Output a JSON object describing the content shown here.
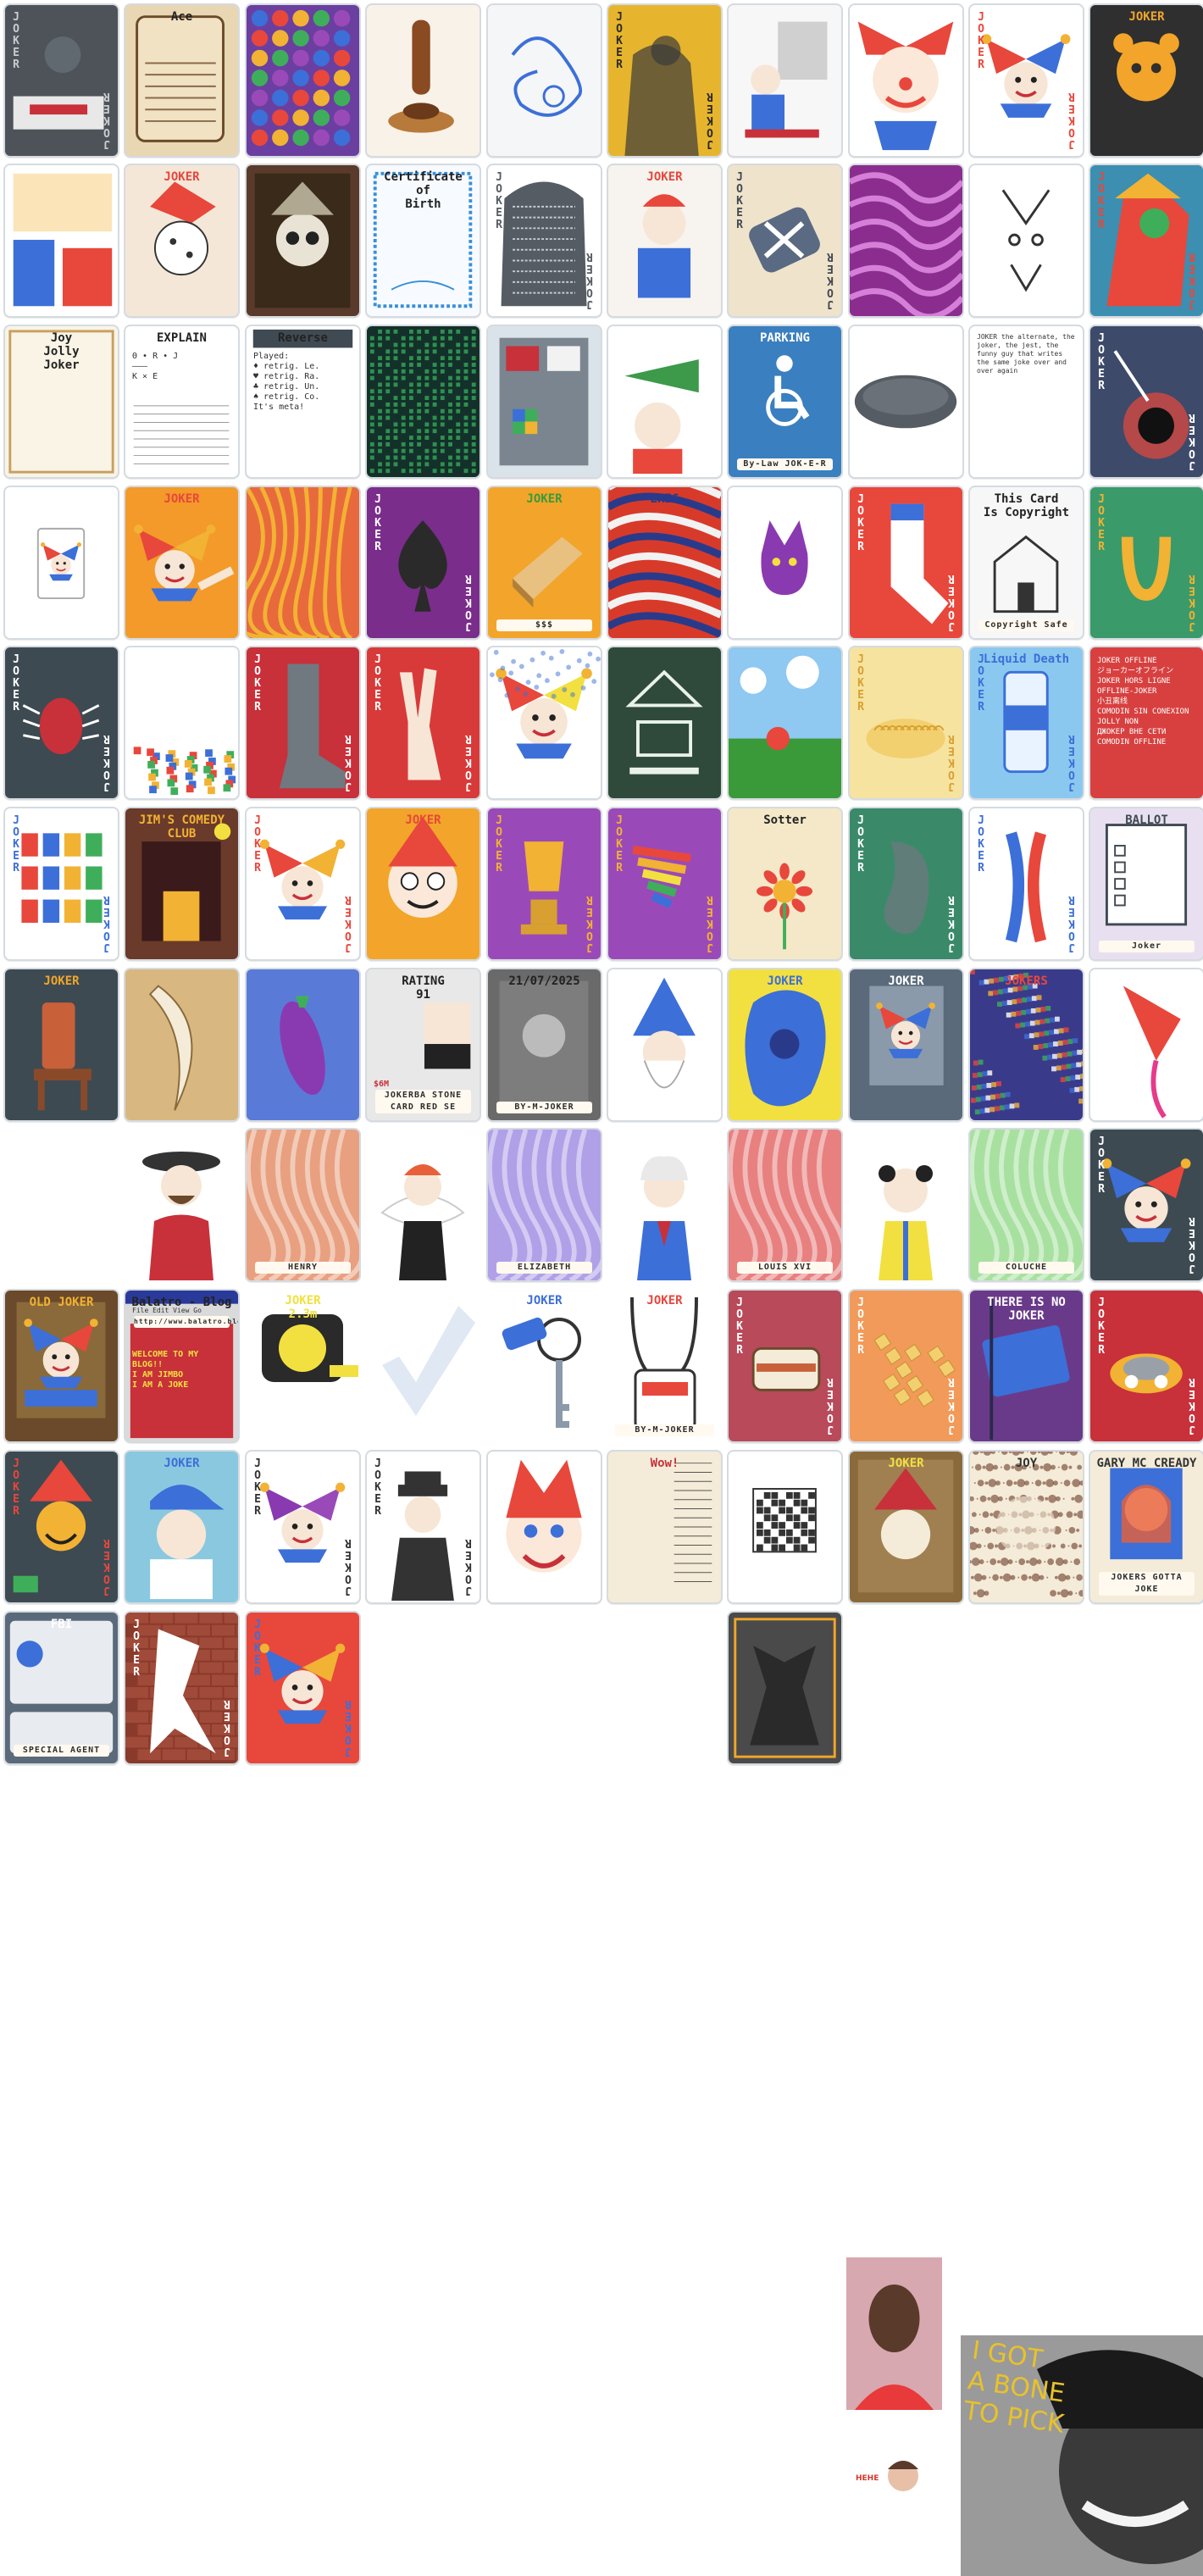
{
  "palette": {
    "border": "#d5dbe0",
    "joker_red": "#e8473c",
    "joker_blue": "#3c6fd8",
    "gold": "#f2b233",
    "dark": "#404a52"
  },
  "cards": [
    {
      "id": "c1",
      "bg": "#4d5359",
      "acc": "#c7ccd1",
      "corner": "JOKER",
      "art": "ashtray"
    },
    {
      "id": "c2",
      "bg": "#e8d7b2",
      "acc": "#3a2a1a",
      "label": "Ace",
      "art": "scroll"
    },
    {
      "id": "c3",
      "bg": "#6a3fa0",
      "acc": "#f0b532",
      "art": "gems"
    },
    {
      "id": "c4",
      "bg": "#f9f2e9",
      "acc": "#8a4a22",
      "art": "stamp"
    },
    {
      "id": "c5",
      "bg": "#f4f6f8",
      "acc": "#3c6fd8",
      "art": "scribble"
    },
    {
      "id": "c6",
      "bg": "#e6b52d",
      "acc": "#2a2a2a",
      "corner": "JOKER",
      "art": "shadow"
    },
    {
      "id": "c7",
      "bg": "#f7f7f7",
      "acc": "#c0392b",
      "art": "painter"
    },
    {
      "id": "c8",
      "bg": "#ffffff",
      "acc": "#e8473c",
      "art": "clown"
    },
    {
      "id": "c9",
      "bg": "#ffffff",
      "acc": "#e8473c",
      "corner": "JOKER",
      "art": "jester"
    },
    {
      "id": "c10",
      "bg": "#2f2f2f",
      "acc": "#f2a52a",
      "label": "JOKER",
      "art": "bear"
    },
    {
      "id": "c11",
      "bg": "#ffffff",
      "acc": "#e8473c",
      "art": "puzzle"
    },
    {
      "id": "c12",
      "bg": "#f4e7d8",
      "acc": "#e8473c",
      "label": "JOKER",
      "art": "dice"
    },
    {
      "id": "c13",
      "bg": "#5a3a2a",
      "acc": "#e9e3d5",
      "art": "skull"
    },
    {
      "id": "c14",
      "bg": "#f7fbff",
      "acc": "#3a8fd8",
      "label": "Certificate\nof\nBirth",
      "art": "certificate"
    },
    {
      "id": "c15",
      "bg": "#ffffff",
      "acc": "#555c63",
      "corner": "JOKER",
      "art": "stone"
    },
    {
      "id": "c16",
      "bg": "#f7f3ee",
      "acc": "#e8473c",
      "label": "JOKER",
      "art": "figure"
    },
    {
      "id": "c17",
      "bg": "#efe3cc",
      "acc": "#404a52",
      "corner": "JOKER",
      "art": "bandage"
    },
    {
      "id": "c18",
      "bg": "#8a2d8f",
      "acc": "#d57fd8",
      "art": "waves"
    },
    {
      "id": "c19",
      "bg": "#ffffff",
      "acc": "#333333",
      "art": "face"
    },
    {
      "id": "c20",
      "bg": "#3c8fb0",
      "acc": "#e8473c",
      "corner": "JOKER",
      "art": "bird"
    },
    {
      "id": "c21",
      "bg": "#faf4e6",
      "acc": "#333333",
      "label": "Joy\nJolly\nJoker",
      "art": "handwriting"
    },
    {
      "id": "c22",
      "bg": "#ffffff",
      "acc": "#333333",
      "label": "EXPLAIN",
      "body": "Θ • R • J\n———\nK × E",
      "art": "lines"
    },
    {
      "id": "c23",
      "bg": "#ffffff",
      "acc": "#333333",
      "label": "Reverse",
      "body": "Played:\n♦ retrig. Le.\n♥ retrig. Ra.\n♣ retrig. Un.\n♠ retrig. Co.\nIt's meta!",
      "art": "reverse"
    },
    {
      "id": "c24",
      "bg": "#14302a",
      "acc": "#3fd06b",
      "art": "matrix"
    },
    {
      "id": "c25",
      "bg": "#dbe3ea",
      "acc": "#404a52",
      "art": "device"
    },
    {
      "id": "c26",
      "bg": "#ffffff",
      "acc": "#3c9a4a",
      "art": "trumpet"
    },
    {
      "id": "c27",
      "bg": "#3a7fc0",
      "acc": "#ffffff",
      "label": "PARKING",
      "sub": "By-Law JOK-E-R",
      "art": "parking"
    },
    {
      "id": "c28",
      "bg": "#ffffff",
      "acc": "#555c63",
      "art": "button"
    },
    {
      "id": "c29",
      "bg": "#ffffff",
      "acc": "#333333",
      "body": "JOKER the alternate, the joker, the jest, the funny guy that writes the same joke over and over again",
      "art": "text"
    },
    {
      "id": "c30",
      "bg": "#3d4a6a",
      "acc": "#ffffff",
      "corner": "JOKER",
      "art": "blackhole"
    },
    {
      "id": "c31",
      "bg": "#ffffff",
      "acc": "#e8473c",
      "art": "mini"
    },
    {
      "id": "c32",
      "bg": "#f39a2a",
      "acc": "#e8473c",
      "label": "JOKER",
      "art": "pointer"
    },
    {
      "id": "c33",
      "bg": "#e86a3c",
      "acc": "#f2b233",
      "art": "noodles"
    },
    {
      "id": "c34",
      "bg": "#7a2d8a",
      "acc": "#ffffff",
      "corner": "JOKER",
      "art": "spade"
    },
    {
      "id": "c35",
      "bg": "#f2a52a",
      "acc": "#3a9a3a",
      "label": "JOKER",
      "sub": "$$$",
      "art": "bread"
    },
    {
      "id": "c36",
      "bg": "#d83a2a",
      "acc": "#2a3a8a",
      "label": "ERIC",
      "art": "swirl"
    },
    {
      "id": "c37",
      "bg": "#ffffff",
      "acc": "#8a3ab0",
      "art": "cat"
    },
    {
      "id": "c38",
      "bg": "#e8473c",
      "acc": "#ffffff",
      "corner": "JOKER",
      "art": "sock"
    },
    {
      "id": "c39",
      "bg": "#f7f7f7",
      "acc": "#333333",
      "label": "This Card\nIs Copyright",
      "sub": "Copyright Safe",
      "art": "house"
    },
    {
      "id": "c40",
      "bg": "#3a9a6a",
      "acc": "#f2b233",
      "corner": "JOKER",
      "art": "horseshoe"
    },
    {
      "id": "c41",
      "bg": "#3d4a52",
      "acc": "#ffffff",
      "corner": "JOKER",
      "art": "bug"
    },
    {
      "id": "c42",
      "bg": "#ffffff",
      "acc": "#e8473c",
      "art": "rubble"
    },
    {
      "id": "c43",
      "bg": "#c8303a",
      "acc": "#ffffff",
      "corner": "JOKER",
      "art": "boot"
    },
    {
      "id": "c44",
      "bg": "#d83a3a",
      "acc": "#ffffff",
      "corner": "JOKER",
      "art": "peace"
    },
    {
      "id": "c45",
      "bg": "#ffffff",
      "acc": "#3c6fd8",
      "art": "popart"
    },
    {
      "id": "c46",
      "bg": "#2f4a3a",
      "acc": "#e9f2e9",
      "art": "emblem"
    },
    {
      "id": "c47",
      "bg": "#8fc8f0",
      "acc": "#3a9a3a",
      "art": "sky"
    },
    {
      "id": "c48",
      "bg": "#f7e3a0",
      "acc": "#d8a030",
      "corner": "JOKER",
      "art": "pasta"
    },
    {
      "id": "c49",
      "bg": "#8ac8f0",
      "acc": "#3c6fd8",
      "corner": "JOKER",
      "label": "Liquid Death",
      "art": "can"
    },
    {
      "id": "c50",
      "bg": "#d84040",
      "acc": "#ffffff",
      "body": "JOKER OFFLINE\nジョーカーオフライン\nJOKER HORS LIGNE\nOFFLINE-JOKER\n小丑离线\nCOMODIN SIN CONEXION\nJOLLY NON\nДЖОКЕР ВНЕ СЕТИ\nCOMODIN OFFLINE",
      "art": "offline"
    },
    {
      "id": "c51",
      "bg": "#ffffff",
      "acc": "#3c6fd8",
      "corner": "JOKER",
      "art": "blocks"
    },
    {
      "id": "c52",
      "bg": "#6a3a2a",
      "acc": "#f2b233",
      "label": "JIM'S COMEDY CLUB",
      "art": "club"
    },
    {
      "id": "c53",
      "bg": "#ffffff",
      "acc": "#e8473c",
      "corner": "JOKER",
      "art": "jester2"
    },
    {
      "id": "c54",
      "bg": "#f2a52a",
      "acc": "#e8473c",
      "label": "JOKER",
      "art": "cartoon"
    },
    {
      "id": "c55",
      "bg": "#9a4ab8",
      "acc": "#f2b233",
      "corner": "JOKER",
      "art": "trophy"
    },
    {
      "id": "c56",
      "bg": "#9a4ab8",
      "acc": "#f2b233",
      "corner": "JOKER",
      "art": "rainbow"
    },
    {
      "id": "c57",
      "bg": "#f4e8c8",
      "acc": "#333333",
      "label": "Sotter",
      "art": "flower"
    },
    {
      "id": "c58",
      "bg": "#3a8a6a",
      "acc": "#ffffff",
      "corner": "JOKER",
      "art": "bean"
    },
    {
      "id": "c59",
      "bg": "#ffffff",
      "acc": "#3c6fd8",
      "corner": "JOKER",
      "art": "chromosome"
    },
    {
      "id": "c60",
      "bg": "#e8e0f0",
      "acc": "#404a52",
      "label": "BALLOT",
      "sub": "Joker",
      "art": "ballot"
    },
    {
      "id": "c61",
      "bg": "#3d4a52",
      "acc": "#f2a52a",
      "label": "JOKER",
      "art": "chair"
    },
    {
      "id": "c62",
      "bg": "#d8b880",
      "acc": "#ffffff",
      "art": "banana"
    },
    {
      "id": "c63",
      "bg": "#5a7ad8",
      "acc": "#8a3ab0",
      "art": "eggplant"
    },
    {
      "id": "c64",
      "bg": "#e8e8e8",
      "acc": "#c8303a",
      "label": "RATING\n91",
      "sub": "JOKERBA\nSTONE CARD RED SE",
      "note": "$6M",
      "art": "stats"
    },
    {
      "id": "c65",
      "bg": "#6a6a6a",
      "acc": "#ffffff",
      "label": "21/07/2025",
      "sub": "BY-M-JOKER",
      "art": "ticket"
    },
    {
      "id": "c66",
      "bg": "#ffffff",
      "acc": "#3c6fd8",
      "art": "wizard"
    },
    {
      "id": "c67",
      "bg": "#f2e040",
      "acc": "#3c6fd8",
      "label": "JOKER",
      "art": "splash"
    },
    {
      "id": "c68",
      "bg": "#5a6a7a",
      "acc": "#ffffff",
      "label": "JOKER",
      "art": "poster"
    },
    {
      "id": "c69",
      "bg": "#3a3a8a",
      "acc": "#e8473c",
      "label": "JOKERS",
      "art": "crowd"
    },
    {
      "id": "c70",
      "bg": "#ffffff",
      "acc": "#e8473c",
      "art": "paint"
    },
    {
      "id": "c71",
      "bg": "transparent",
      "acc": "#c8303a",
      "art": "portrait-man",
      "noborder": true
    },
    {
      "id": "c72",
      "bg": "#e8a080",
      "acc": "#ffffff",
      "label": "HENRY",
      "art": "wood"
    },
    {
      "id": "c73",
      "bg": "transparent",
      "acc": "#e8473c",
      "art": "portrait-queen",
      "noborder": true
    },
    {
      "id": "c74",
      "bg": "#b0a0e8",
      "acc": "#ffffff",
      "label": "ELIZABETH",
      "art": "wood"
    },
    {
      "id": "c75",
      "bg": "transparent",
      "acc": "#8a3ab0",
      "art": "portrait-king",
      "noborder": true
    },
    {
      "id": "c76",
      "bg": "#e88080",
      "acc": "#ffffff",
      "label": "LOUIS XVI",
      "art": "wood"
    },
    {
      "id": "c77",
      "bg": "transparent",
      "acc": "#f2e040",
      "art": "portrait-clown",
      "noborder": true
    },
    {
      "id": "c78",
      "bg": "#a8e0a0",
      "acc": "#ffffff",
      "label": "COLUCHE",
      "art": "wood"
    },
    {
      "id": "c79",
      "bg": "#3d4a52",
      "acc": "#ffffff",
      "corner": "JOKER",
      "art": "jester3"
    },
    {
      "id": "c80",
      "bg": "#6a4a2a",
      "acc": "#f2b233",
      "label": "OLD JOKER",
      "art": "oldjoker"
    },
    {
      "id": "c81",
      "bg": "#dadada",
      "acc": "#2a3a9a",
      "label": "Balatro - Blog",
      "body": "File  Edit  View  Go",
      "sub": "http://www.balatro.blog",
      "note": "WELCOME TO MY BLOG!!\nI AM JIMBO\nI AM A JOKE",
      "art": "browser"
    },
    {
      "id": "c82",
      "bg": "transparent",
      "acc": "#f2e040",
      "label": "JOKER\n2.3m",
      "art": "tape",
      "noborder": true
    },
    {
      "id": "c83",
      "bg": "transparent",
      "acc": "#e0e8f4",
      "art": "check",
      "noborder": true
    },
    {
      "id": "c84",
      "bg": "transparent",
      "acc": "#3c6fd8",
      "label": "JOKER",
      "art": "key",
      "noborder": true
    },
    {
      "id": "c85",
      "bg": "transparent",
      "acc": "#e8473c",
      "label": "JOKER",
      "sub": "BY-M-JOKER",
      "art": "lanyard",
      "noborder": true
    },
    {
      "id": "c86",
      "bg": "#b84a5a",
      "acc": "#ffffff",
      "corner": "JOKER",
      "art": "sandwich"
    },
    {
      "id": "c87",
      "bg": "#f29a5a",
      "acc": "#ffffff",
      "corner": "JOKER",
      "art": "chips"
    },
    {
      "id": "c88",
      "bg": "#6a3a8a",
      "acc": "#ffffff",
      "label": "THERE IS NO JOKER",
      "art": "sign"
    },
    {
      "id": "c89",
      "bg": "#c8303a",
      "acc": "#ffffff",
      "corner": "JOKER",
      "art": "rock"
    },
    {
      "id": "c90",
      "bg": "#3d4a52",
      "acc": "#e8473c",
      "corner": "JOKER",
      "art": "smiley"
    },
    {
      "id": "c91",
      "bg": "#8ac8e0",
      "acc": "#3c6fd8",
      "label": "JOKER",
      "art": "cap"
    },
    {
      "id": "c92",
      "bg": "#ffffff",
      "acc": "#333333",
      "corner": "JOKER",
      "art": "purplejester"
    },
    {
      "id": "c93",
      "bg": "#ffffff",
      "acc": "#333333",
      "corner": "JOKER",
      "art": "gangster"
    },
    {
      "id": "c94",
      "bg": "#ffffff",
      "acc": "#e8473c",
      "art": "bigclown"
    },
    {
      "id": "c95",
      "bg": "#f4ecd8",
      "acc": "#c8303a",
      "label": "Wow!",
      "art": "receipt"
    },
    {
      "id": "c96",
      "bg": "#ffffff",
      "acc": "#333333",
      "art": "qr"
    },
    {
      "id": "c97",
      "bg": "#8a6a3a",
      "acc": "#f2e040",
      "label": "JOKER",
      "art": "sepia"
    },
    {
      "id": "c98",
      "bg": "#f4ecd8",
      "acc": "#333333",
      "label": "JOY",
      "art": "halftone"
    },
    {
      "id": "c99",
      "bg": "#f4ecd8",
      "acc": "#333333",
      "label": "GARY MC CREADY",
      "sub": "JOKERS GOTTA JOKE",
      "art": "gary"
    },
    {
      "id": "c100",
      "bg": "#5a6a7a",
      "acc": "#ffffff",
      "label": "FBI",
      "sub": "SPECIAL AGENT",
      "art": "fbi"
    },
    {
      "id": "c101",
      "bg": "#8a3a2a",
      "acc": "#ffffff",
      "corner": "JOKER",
      "art": "bricks"
    },
    {
      "id": "c102",
      "bg": "#e8473c",
      "acc": "#3c6fd8",
      "corner": "JOKER",
      "art": "jester4"
    },
    {
      "id": "c103",
      "bg": "#4a4a4a",
      "acc": "#f2a52a",
      "art": "silhouette"
    }
  ],
  "photos": [
    {
      "id": "p1",
      "art": "mugshot"
    },
    {
      "id": "p2",
      "tag": "HEHE",
      "art": "smallface"
    },
    {
      "id": "p3",
      "note": "I GOT\nA BONE\nTO PICK",
      "art": "meme"
    }
  ]
}
